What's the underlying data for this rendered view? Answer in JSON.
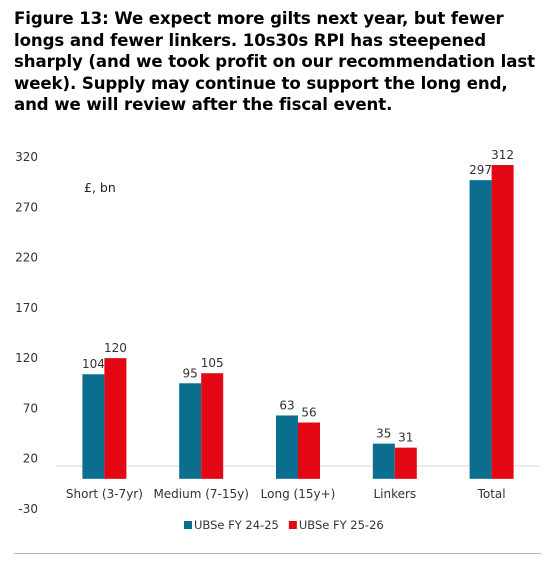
{
  "title": "Figure 13: We expect more gilts next year, but fewer longs and fewer linkers. 10s30s RPI has steepened sharply (and we took profit on our recommendation last week). Supply may continue to support the long end, and we will review after the fiscal event.",
  "chart_data": {
    "type": "bar",
    "unit_label": "£, bn",
    "categories": [
      "Short (3-7yr)",
      "Medium (7-15y)",
      "Long (15y+)",
      "Linkers",
      "Total"
    ],
    "series": [
      {
        "name": "UBSe FY 24-25",
        "values": [
          104,
          95,
          63,
          35,
          297
        ],
        "color": "#0b6e8f"
      },
      {
        "name": "UBSe FY 25-26",
        "values": [
          120,
          105,
          56,
          31,
          312
        ],
        "color": "#e30613"
      }
    ],
    "ylim": [
      -30,
      320
    ],
    "yticks": [
      320,
      270,
      220,
      170,
      120,
      70,
      20,
      -30
    ],
    "grid": false,
    "legend": "bottom-center",
    "data_labels": true
  }
}
